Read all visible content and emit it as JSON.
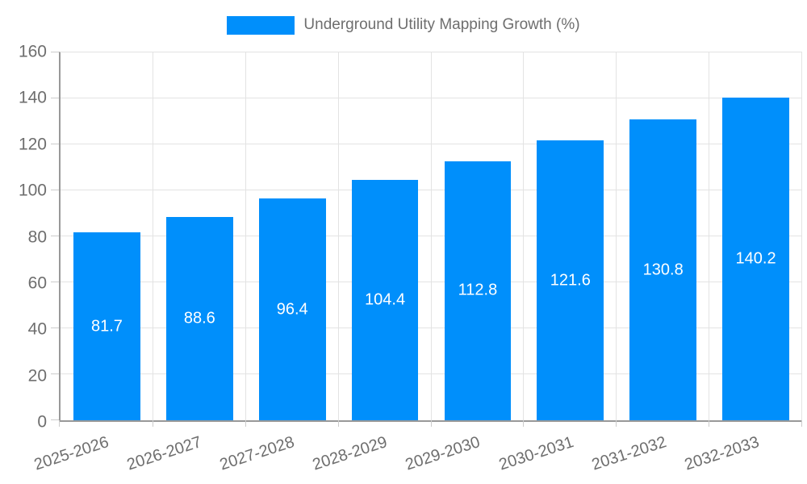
{
  "legend": {
    "label": "Underground Utility Mapping Growth (%)"
  },
  "chart_data": {
    "type": "bar",
    "title": "Underground Utility Mapping Growth (%)",
    "categories": [
      "2025-2026",
      "2026-2027",
      "2027-2028",
      "2028-2029",
      "2029-2030",
      "2030-2031",
      "2031-2032",
      "2032-2033"
    ],
    "values": [
      81.7,
      88.6,
      96.4,
      104.4,
      112.8,
      121.6,
      130.8,
      140.2
    ],
    "value_labels": [
      "81.7",
      "88.6",
      "96.4",
      "104.4",
      "112.8",
      "121.6",
      "130.8",
      "140.2"
    ],
    "ylim": [
      0,
      160
    ],
    "ytick_step": 20,
    "ytick_labels": [
      "0",
      "20",
      "40",
      "60",
      "80",
      "100",
      "120",
      "140",
      "160"
    ],
    "grid": true,
    "legend_position": "top",
    "x_label_rotation_deg": -18,
    "colors": {
      "bar": "#008FFB",
      "bar_label": "#FFFFFF",
      "axis_text": "#6E6E6E",
      "grid_line": "#E3E3E3",
      "tick_line": "#CCCCCC",
      "axis_line": "#999999"
    }
  }
}
